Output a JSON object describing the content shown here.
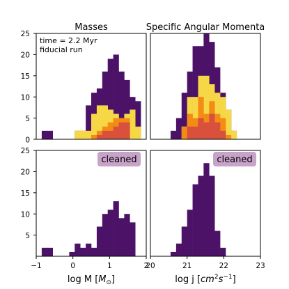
{
  "colors": {
    "purple": "#4b1268",
    "orange": "#f28c14",
    "red": "#d9503c",
    "yellow": "#f6d846",
    "badge": "#c7a2c9"
  },
  "chart_data": [
    {
      "type": "bar",
      "panel": "top-left",
      "title": "Masses",
      "annotation_lines": [
        "time = 2.2 Myr",
        "fiducial run"
      ],
      "xlim": [
        -1,
        2
      ],
      "ylim": [
        0,
        25
      ],
      "yticks": [
        0,
        5,
        10,
        15,
        20,
        25
      ],
      "show_yticks": true,
      "show_xticks": false,
      "bin_width": 0.15,
      "bin_starts": [
        -0.85,
        -0.7,
        -0.1,
        0.05,
        0.2,
        0.35,
        0.5,
        0.65,
        0.8,
        0.95,
        1.1,
        1.25,
        1.4,
        1.55,
        1.7
      ],
      "series": [
        {
          "color": "purple",
          "values": [
            2,
            2,
            0,
            2,
            2,
            8,
            11,
            12,
            16,
            19,
            20,
            16,
            14,
            10,
            9
          ]
        },
        {
          "color": "yellow",
          "values": [
            0,
            0,
            0,
            2,
            2,
            2,
            6,
            8,
            8,
            7,
            6,
            5,
            6,
            7,
            3
          ]
        },
        {
          "color": "orange",
          "values": [
            0,
            0,
            0,
            0,
            0,
            0,
            1,
            2,
            3,
            4,
            5,
            5,
            5,
            0,
            0
          ]
        },
        {
          "color": "red",
          "values": [
            0,
            0,
            0,
            0,
            0,
            0,
            0,
            1,
            2,
            2,
            3,
            4,
            4,
            0,
            0
          ]
        }
      ]
    },
    {
      "type": "bar",
      "panel": "top-right",
      "title": "Specific Angular Momenta",
      "xlim": [
        20,
        23
      ],
      "ylim": [
        0,
        25
      ],
      "yticks": [
        0,
        5,
        10,
        15,
        20,
        25
      ],
      "show_yticks": false,
      "show_xticks": false,
      "bin_width": 0.15,
      "bin_starts": [
        20.55,
        20.7,
        20.85,
        21.0,
        21.15,
        21.3,
        21.45,
        21.6,
        21.75,
        21.9,
        22.05,
        22.2
      ],
      "series": [
        {
          "color": "purple",
          "values": [
            2,
            5,
            11,
            16,
            22,
            22,
            25,
            23,
            17,
            11,
            7,
            2
          ]
        },
        {
          "color": "yellow",
          "values": [
            0,
            0,
            3,
            10,
            10,
            15,
            15,
            13,
            11,
            10,
            7,
            2
          ]
        },
        {
          "color": "orange",
          "values": [
            0,
            0,
            3,
            6,
            5,
            10,
            6,
            9,
            6,
            5,
            1,
            0
          ]
        },
        {
          "color": "red",
          "values": [
            0,
            0,
            0,
            3,
            3,
            5,
            4,
            6,
            4,
            2,
            0,
            0
          ]
        }
      ]
    },
    {
      "type": "bar",
      "panel": "bottom-left",
      "badge": "cleaned",
      "xlabel": "log M [$M_{\\odot}$]",
      "xlim": [
        -1,
        2
      ],
      "ylim": [
        0,
        25
      ],
      "yticks": [
        5,
        10,
        15,
        20,
        25
      ],
      "xticks": [
        -1,
        0,
        1,
        2
      ],
      "show_yticks": true,
      "show_xticks": true,
      "bin_width": 0.15,
      "bin_starts": [
        -0.85,
        -0.7,
        -0.1,
        0.05,
        0.2,
        0.35,
        0.5,
        0.65,
        0.8,
        0.95,
        1.1,
        1.25,
        1.4,
        1.55,
        1.7
      ],
      "series": [
        {
          "color": "purple",
          "values": [
            2,
            2,
            1,
            3,
            2,
            3,
            2,
            7,
            10,
            11,
            13,
            9,
            10,
            8,
            0
          ]
        }
      ]
    },
    {
      "type": "bar",
      "panel": "bottom-right",
      "badge": "cleaned",
      "xlabel": "log j [$cm^2 s^{-1}$]",
      "xlim": [
        20,
        23
      ],
      "ylim": [
        0,
        25
      ],
      "yticks": [
        5,
        10,
        15,
        20,
        25
      ],
      "xticks": [
        20,
        21,
        22,
        23
      ],
      "show_yticks": false,
      "show_xticks": true,
      "bin_width": 0.15,
      "bin_starts": [
        20.55,
        20.7,
        20.85,
        21.0,
        21.15,
        21.3,
        21.45,
        21.6,
        21.75,
        21.9
      ],
      "series": [
        {
          "color": "purple",
          "values": [
            1,
            3,
            7,
            11,
            17,
            19,
            22,
            19,
            6,
            2
          ]
        }
      ]
    }
  ],
  "display": {
    "title_masses": "Masses",
    "title_j": "Specific Angular Momenta",
    "annotation_line1": "time = 2.2 Myr",
    "annotation_line2": "fiducial run",
    "badge": "cleaned",
    "xlabel_m_prefix": "log M [",
    "xlabel_m_sym": "M",
    "xlabel_m_sub": "⊙",
    "xlabel_m_suffix": "]",
    "xlabel_j_prefix": "log j [",
    "xlabel_j_cm": "cm",
    "xlabel_j_sup2": "2",
    "xlabel_j_s": "s",
    "xlabel_j_supm1": "−1",
    "xlabel_j_suffix": "]",
    "ytick_top": [
      "25",
      "20",
      "15",
      "10",
      "5",
      "0"
    ],
    "ytick_bottom": [
      "25",
      "20",
      "15",
      "10",
      "5"
    ],
    "xtick_m": [
      "−1",
      "0",
      "1",
      "2"
    ],
    "xtick_j": [
      "20",
      "21",
      "22",
      "23"
    ]
  }
}
